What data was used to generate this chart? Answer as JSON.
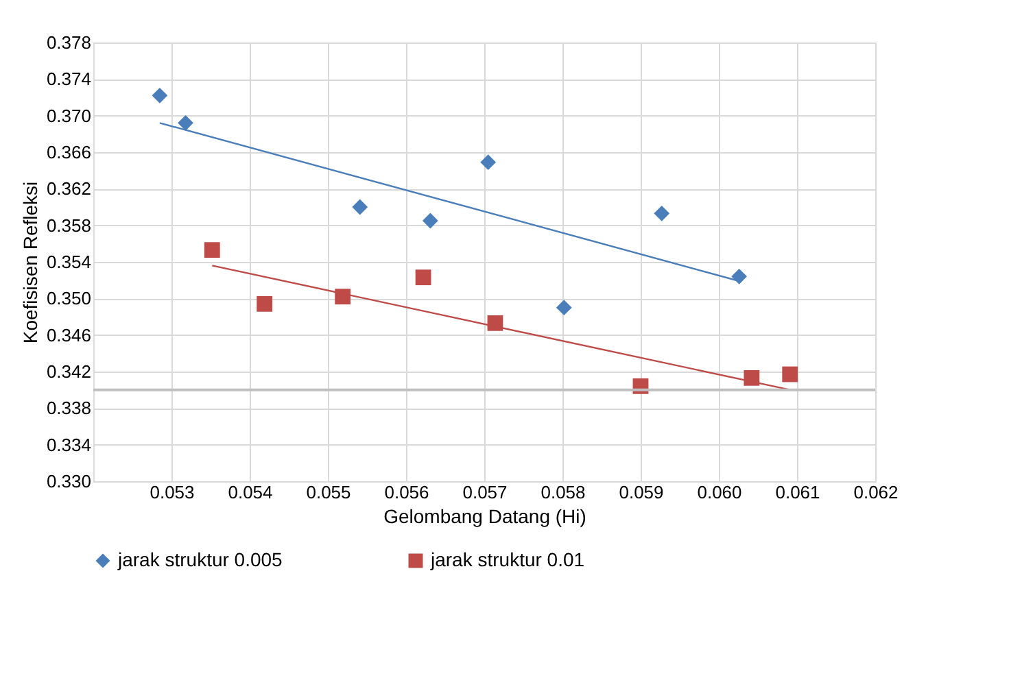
{
  "chart_data": {
    "type": "scatter",
    "xlabel": "Gelombang Datang (Hi)",
    "ylabel": "Koefisisen Refleksi",
    "xlim": [
      0.052,
      0.062
    ],
    "xticks": [
      0.053,
      0.054,
      0.055,
      0.056,
      0.057,
      0.058,
      0.059,
      {
        "value": 0.06,
        "label": "0.060"
      },
      0.061,
      0.062
    ],
    "ylim": [
      0.33,
      0.378
    ],
    "yticks": [
      {
        "value": 0.33,
        "label": "0.330"
      },
      0.334,
      0.338,
      0.342,
      0.346,
      {
        "value": 0.35,
        "label": "0.350"
      },
      0.354,
      0.358,
      0.362,
      0.366,
      {
        "value": 0.37,
        "label": "0.370"
      },
      0.374,
      0.378
    ],
    "grid": true,
    "legend": "bottom",
    "series": [
      {
        "name": "jarak struktur 0.005",
        "color": "#4a7ebb",
        "marker": "diamond",
        "x": [
          0.05285,
          0.05318,
          0.05541,
          0.05631,
          0.05705,
          0.05802,
          0.05927,
          0.06026
        ],
        "values": [
          0.3722,
          0.3692,
          0.36,
          0.3585,
          0.3649,
          0.349,
          0.3593,
          0.3524
        ]
      },
      {
        "name": "jarak struktur 0.01",
        "color": "#be4b48",
        "marker": "square",
        "x": [
          0.05352,
          0.05419,
          0.05519,
          0.05622,
          0.05714,
          0.059,
          0.06042,
          0.06091
        ],
        "values": [
          0.3553,
          0.3494,
          0.3502,
          0.3523,
          0.3473,
          0.3404,
          0.3413,
          0.3417
        ]
      },
      {
        "type": "line",
        "color": "#4a7ebb",
        "x": [
          0.05285,
          0.06026
        ],
        "values": [
          0.3692,
          0.3519
        ]
      },
      {
        "type": "line",
        "color": "#be4b48",
        "x": [
          0.05352,
          0.06091
        ],
        "values": [
          0.3536,
          0.34
        ]
      }
    ],
    "ref_lines": [
      {
        "axis": "y",
        "value": 0.34,
        "label": null,
        "color": "#bfbfbf"
      }
    ]
  }
}
